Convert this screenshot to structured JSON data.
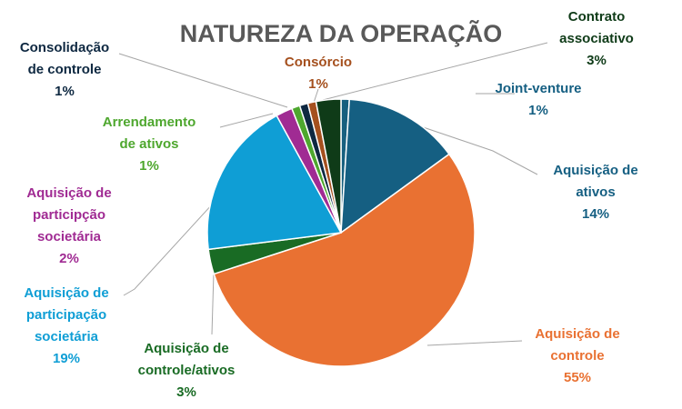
{
  "chart_data": {
    "type": "pie",
    "title": "NATUREZA DA OPERAÇÃO",
    "slices": [
      {
        "key": "joint_venture",
        "label": "Joint-venture",
        "value": 1,
        "pct_label": "1%",
        "color": "#17607f"
      },
      {
        "key": "aquisicao_ativos",
        "label": "Aquisição de ativos",
        "value": 14,
        "pct_label": "14%",
        "color": "#155f82"
      },
      {
        "key": "aquisicao_controle",
        "label": "Aquisição de controle",
        "value": 55,
        "pct_label": "55%",
        "color": "#e97132"
      },
      {
        "key": "aquisicao_controle_ativos",
        "label": "Aquisição de controle/ativos",
        "value": 3,
        "pct_label": "3%",
        "color": "#196b24"
      },
      {
        "key": "aquisicao_participacao",
        "label": "Aquisição de participação societária",
        "value": 19,
        "pct_label": "19%",
        "color": "#0f9ed5"
      },
      {
        "key": "aquisicao_participcao",
        "label": "Aquisição de participção societária",
        "value": 2,
        "pct_label": "2%",
        "color": "#a02b93"
      },
      {
        "key": "arrendamento",
        "label": "Arrendamento de ativos",
        "value": 1,
        "pct_label": "1%",
        "color": "#4ea72e"
      },
      {
        "key": "consolidacao",
        "label": "Consolidação de controle",
        "value": 1,
        "pct_label": "1%",
        "color": "#0e2841"
      },
      {
        "key": "consorcio",
        "label": "Consórcio",
        "value": 1,
        "pct_label": "1%",
        "color": "#a5501e"
      },
      {
        "key": "contrato_associativo",
        "label": "Contrato associativo",
        "value": 3,
        "pct_label": "3%",
        "color": "#0f3b18"
      }
    ],
    "legend": "none",
    "data_labels": "outside with leader lines",
    "label_colors": {
      "joint_venture": "#155f82",
      "aquisicao_ativos": "#155f82",
      "aquisicao_controle": "#e97132",
      "aquisicao_controle_ativos": "#196b24",
      "aquisicao_participacao": "#0f9ed5",
      "aquisicao_participcao": "#a02b93",
      "arrendamento": "#4ea72e",
      "consolidacao": "#0e2841",
      "consorcio": "#a5501e",
      "contrato_associativo": "#0f3b18"
    },
    "label_lines": {
      "joint_venture": [
        "Joint-venture",
        "1%"
      ],
      "aquisicao_ativos": [
        "Aquisição de",
        "ativos",
        "14%"
      ],
      "aquisicao_controle": [
        "Aquisição de",
        "controle",
        "55%"
      ],
      "aquisicao_controle_ativos": [
        "Aquisição de",
        "controle/ativos",
        "3%"
      ],
      "aquisicao_participacao": [
        "Aquisição de",
        "participação",
        "societária",
        "19%"
      ],
      "aquisicao_participcao": [
        "Aquisição de",
        "participção",
        "societária",
        "2%"
      ],
      "arrendamento": [
        "Arrendamento",
        "de ativos",
        "1%"
      ],
      "consolidacao": [
        "Consolidação",
        "de controle",
        "1%"
      ],
      "consorcio": [
        "Consórcio",
        "1%"
      ],
      "contrato_associativo": [
        "Contrato",
        "associativo",
        "3%"
      ]
    }
  }
}
